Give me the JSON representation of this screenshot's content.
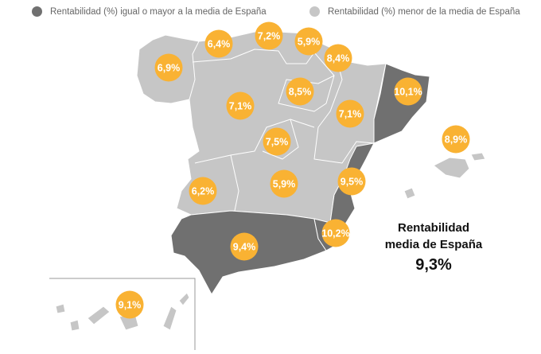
{
  "legend": {
    "above": {
      "label": "Rentabilidad (%) igual o mayor a la media de España",
      "color": "#707070"
    },
    "below": {
      "label": "Rentabilidad (%) menor de la media de España",
      "color": "#c6c6c6"
    }
  },
  "bubble_color": "#f9b233",
  "national_average": {
    "line1": "Rentabilidad",
    "line2": "media de España",
    "value": "9,3%"
  },
  "regions": [
    {
      "id": "galicia",
      "value": "6,9%",
      "category": "below"
    },
    {
      "id": "asturias",
      "value": "6,4%",
      "category": "below"
    },
    {
      "id": "cantabria",
      "value": "7,2%",
      "category": "below"
    },
    {
      "id": "pais-vasco",
      "value": "5,9%",
      "category": "below"
    },
    {
      "id": "navarra",
      "value": "8,4%",
      "category": "below"
    },
    {
      "id": "la-rioja",
      "value": "8,5%",
      "category": "below"
    },
    {
      "id": "cataluna",
      "value": "10,1%",
      "category": "above"
    },
    {
      "id": "castilla-y-leon",
      "value": "7,1%",
      "category": "below"
    },
    {
      "id": "aragon",
      "value": "7,1%",
      "category": "below"
    },
    {
      "id": "madrid",
      "value": "7,5%",
      "category": "below"
    },
    {
      "id": "baleares",
      "value": "8,9%",
      "category": "below"
    },
    {
      "id": "extremadura",
      "value": "6,2%",
      "category": "below"
    },
    {
      "id": "castilla-la-mancha",
      "value": "5,9%",
      "category": "below"
    },
    {
      "id": "comunidad-valenciana",
      "value": "9,5%",
      "category": "above"
    },
    {
      "id": "murcia",
      "value": "10,2%",
      "category": "above"
    },
    {
      "id": "andalucia",
      "value": "9,4%",
      "category": "above"
    },
    {
      "id": "canarias",
      "value": "9,1%",
      "category": "below"
    }
  ]
}
